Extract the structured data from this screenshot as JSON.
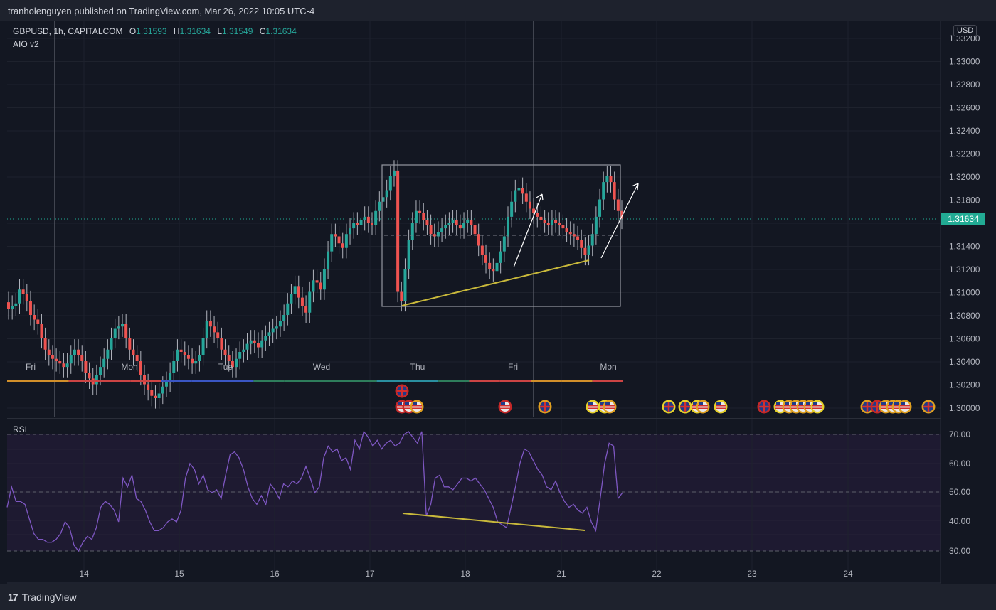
{
  "header": {
    "publish_text": "tranholenguyen published on TradingView.com, Mar 26, 2022 10:05 UTC-4"
  },
  "legend": {
    "symbol": "GBPUSD, 1h, CAPITALCOM",
    "open_label": "O",
    "open": "1.31593",
    "high_label": "H",
    "high": "1.31634",
    "low_label": "L",
    "low": "1.31549",
    "close_label": "C",
    "close": "1.31634",
    "indicator": "AIO v2"
  },
  "price_axis": {
    "currency": "USD",
    "ticks": [
      "1.33200",
      "1.33000",
      "1.32800",
      "1.32600",
      "1.32400",
      "1.32200",
      "1.32000",
      "1.31800",
      "1.31600",
      "1.31400",
      "1.31200",
      "1.31000",
      "1.30800",
      "1.30600",
      "1.30400",
      "1.30200",
      "1.30000"
    ],
    "last_price": "1.31634"
  },
  "rsi": {
    "label": "RSI",
    "ticks": [
      "70.00",
      "60.00",
      "50.00",
      "40.00",
      "30.00"
    ]
  },
  "session_labels": [
    "Fri",
    "Mon",
    "Tue",
    "Wed",
    "Thu",
    "Fri",
    "Mon"
  ],
  "time_axis": [
    "14",
    "15",
    "16",
    "17",
    "18",
    "21",
    "22",
    "23",
    "24"
  ],
  "footer": {
    "brand": "TradingView",
    "brand_mark": "17"
  },
  "colors": {
    "up": "#26a69a",
    "down": "#ef5350",
    "rsi": "#7e57c2",
    "trendline": "#c9b93b",
    "background": "#131722"
  },
  "chart_data": [
    {
      "type": "candlestick",
      "title": "GBPUSD, 1h, CAPITALCOM",
      "ylim": [
        1.2995,
        1.3335
      ],
      "x_ticks": [
        "14",
        "15",
        "16",
        "17",
        "18",
        "21",
        "22",
        "23",
        "24"
      ],
      "close_series": [
        1.3085,
        1.3088,
        1.309,
        1.3102,
        1.3098,
        1.3092,
        1.308,
        1.3076,
        1.3072,
        1.306,
        1.305,
        1.3045,
        1.3042,
        1.304,
        1.3038,
        1.3035,
        1.3038,
        1.3045,
        1.305,
        1.3045,
        1.304,
        1.303,
        1.3025,
        1.302,
        1.3028,
        1.3035,
        1.3042,
        1.305,
        1.306,
        1.3068,
        1.307,
        1.3072,
        1.306,
        1.305,
        1.3045,
        1.304,
        1.3028,
        1.302,
        1.3015,
        1.301,
        1.3008,
        1.3012,
        1.3018,
        1.3022,
        1.303,
        1.304,
        1.305,
        1.3048,
        1.3045,
        1.3042,
        1.3038,
        1.304,
        1.3045,
        1.306,
        1.3075,
        1.307,
        1.3065,
        1.306,
        1.305,
        1.3045,
        1.304,
        1.3035,
        1.3042,
        1.3048,
        1.305,
        1.3055,
        1.3058,
        1.3056,
        1.3052,
        1.3058,
        1.3062,
        1.3065,
        1.3068,
        1.307,
        1.3075,
        1.308,
        1.309,
        1.3098,
        1.3105,
        1.3095,
        1.3088,
        1.3082,
        1.31,
        1.311,
        1.3108,
        1.3102,
        1.312,
        1.3135,
        1.315,
        1.3148,
        1.3142,
        1.3138,
        1.315,
        1.3155,
        1.316,
        1.3158,
        1.3162,
        1.3165,
        1.316,
        1.3158,
        1.317,
        1.3178,
        1.3182,
        1.3188,
        1.32,
        1.3205,
        1.31,
        1.3092,
        1.312,
        1.3145,
        1.316,
        1.317,
        1.3168,
        1.3162,
        1.3158,
        1.315,
        1.3148,
        1.3152,
        1.3155,
        1.3158,
        1.316,
        1.3162,
        1.3158,
        1.3155,
        1.316,
        1.3162,
        1.3158,
        1.315,
        1.314,
        1.3132,
        1.3125,
        1.312,
        1.3118,
        1.3125,
        1.3135,
        1.3148,
        1.3165,
        1.3178,
        1.3188,
        1.319,
        1.3185,
        1.3178,
        1.3172,
        1.3168,
        1.3165,
        1.3162,
        1.316,
        1.3158,
        1.3162,
        1.316,
        1.3158,
        1.3155,
        1.3152,
        1.315,
        1.3148,
        1.3145,
        1.3138,
        1.3132,
        1.314,
        1.315,
        1.3165,
        1.318,
        1.3195,
        1.32,
        1.3195,
        1.318,
        1.317,
        1.31634
      ]
    },
    {
      "type": "line",
      "title": "RSI",
      "ylim": [
        27,
        73
      ],
      "series": [
        {
          "values": [
            45,
            52,
            47,
            47,
            46,
            41,
            36,
            34,
            34,
            33,
            33,
            34,
            36,
            40,
            38,
            32,
            30,
            33,
            35,
            34,
            38,
            45,
            47,
            46,
            44,
            40,
            55,
            52,
            56,
            48,
            47,
            44,
            40,
            37,
            37,
            38,
            40,
            41,
            40,
            44,
            55,
            60,
            58,
            53,
            56,
            51,
            50,
            51,
            48,
            56,
            63,
            64,
            62,
            58,
            52,
            48,
            46,
            49,
            46,
            53,
            51,
            48,
            53,
            52,
            54,
            53,
            55,
            59,
            55,
            50,
            52,
            62,
            66,
            64,
            65,
            61,
            62,
            58,
            68,
            65,
            71,
            69,
            66,
            68,
            65,
            67,
            68,
            66,
            67,
            70,
            71,
            69,
            67,
            71,
            42,
            46,
            55,
            56,
            52,
            52,
            51,
            53,
            55,
            55,
            54,
            55,
            53,
            51,
            48,
            45,
            40,
            39,
            38,
            45,
            52,
            60,
            65,
            64,
            61,
            58,
            56,
            52,
            51,
            54,
            50,
            47,
            45,
            46,
            44,
            43,
            45,
            40,
            37,
            48,
            60,
            67,
            66,
            48,
            50
          ]
        }
      ],
      "reference_lines": [
        70,
        50,
        30
      ]
    }
  ]
}
